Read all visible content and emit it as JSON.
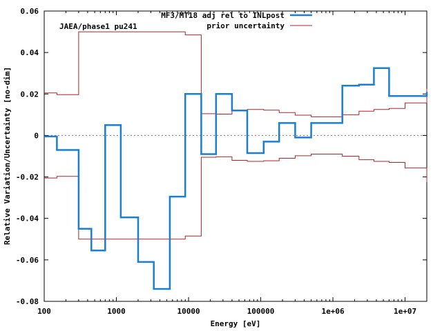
{
  "chart_data": {
    "type": "line",
    "step": true,
    "xscale": "log",
    "xlim": [
      100,
      20000000
    ],
    "ylim": [
      -0.08,
      0.06
    ],
    "xlabel": "Energy [eV]",
    "ylabel": "Relative Variation/Uncertainty [no-dim]",
    "annotation": "JAEA/phase1 pu241",
    "legend_position": "top-right",
    "grid": false,
    "zero_line": true,
    "x_ticks": [
      {
        "value": 100,
        "label": "100"
      },
      {
        "value": 1000,
        "label": "1000"
      },
      {
        "value": 10000,
        "label": "10000"
      },
      {
        "value": 100000,
        "label": "100000"
      },
      {
        "value": 1000000,
        "label": "1e+06"
      },
      {
        "value": 10000000,
        "label": "1e+07"
      }
    ],
    "y_ticks": [
      {
        "value": 0.06,
        "label": "0.06"
      },
      {
        "value": 0.04,
        "label": "0.04"
      },
      {
        "value": 0.02,
        "label": "0.02"
      },
      {
        "value": 0,
        "label": "0"
      },
      {
        "value": -0.02,
        "label": "-0.02"
      },
      {
        "value": -0.04,
        "label": "-0.04"
      },
      {
        "value": -0.06,
        "label": "-0.06"
      },
      {
        "value": -0.08,
        "label": "-0.08"
      }
    ],
    "series": [
      {
        "name": "MF3/MT18 adj rel to INLpost",
        "color": "#1a7fd4",
        "edges": [
          100,
          150,
          300,
          450,
          700,
          1150,
          2000,
          3300,
          5500,
          9000,
          15000,
          24000,
          40000,
          65000,
          110000,
          180000,
          300000,
          500000,
          1350000,
          2300000,
          3700000,
          6000000,
          20000000
        ],
        "values": [
          -0.0005,
          -0.007,
          -0.045,
          -0.0555,
          0.005,
          -0.0395,
          -0.061,
          -0.074,
          -0.0295,
          0.02,
          -0.009,
          0.02,
          0.012,
          -0.0085,
          -0.003,
          0.006,
          -0.001,
          0.006,
          0.024,
          0.0245,
          0.0325,
          0.019,
          0.021
        ]
      },
      {
        "name": "prior uncertainty",
        "color": "#b22222",
        "edges": [
          100,
          150,
          300,
          9000,
          15000,
          24000,
          40000,
          65000,
          110000,
          180000,
          300000,
          500000,
          1350000,
          2300000,
          3700000,
          6000000,
          10000000,
          20000000
        ],
        "values": [
          0.0205,
          0.0197,
          0.05,
          0.0485,
          0.0105,
          0.0103,
          0.012,
          0.0125,
          0.0122,
          0.011,
          0.0098,
          0.009,
          0.01,
          0.0117,
          0.0125,
          0.013,
          0.0157,
          0.0225
        ],
        "symmetric": true
      }
    ]
  }
}
